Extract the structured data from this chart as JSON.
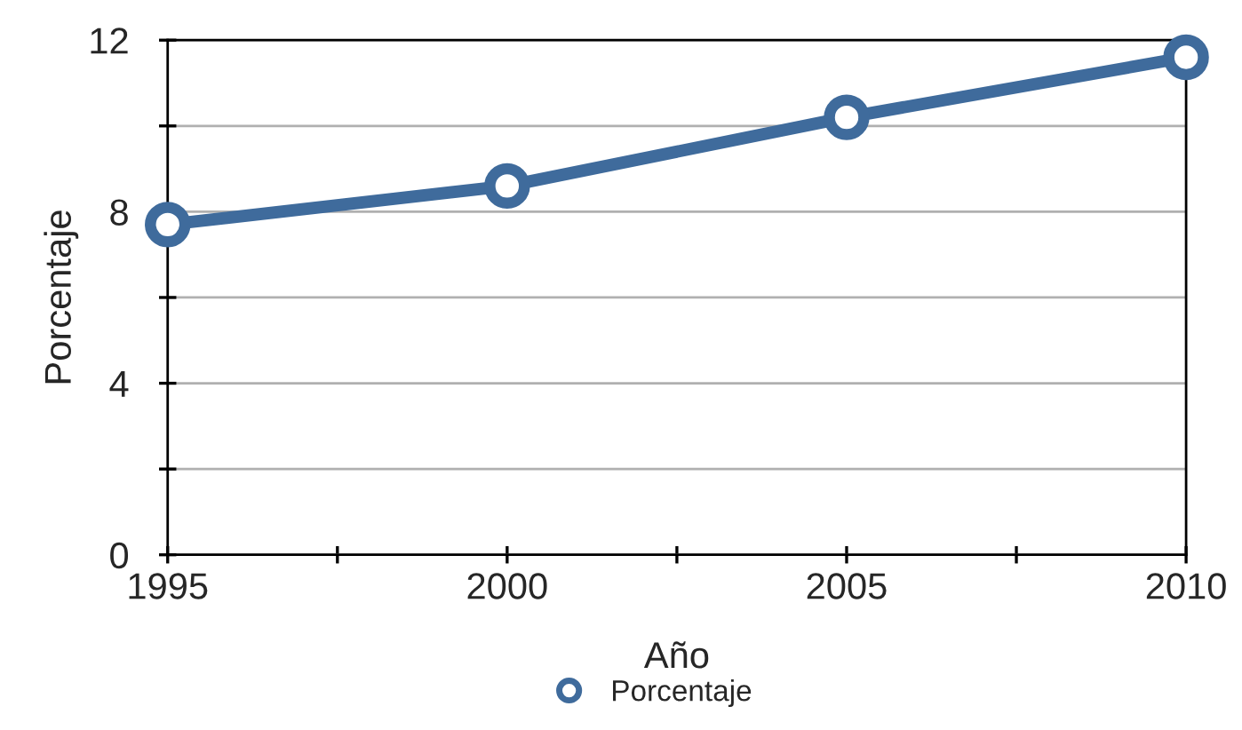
{
  "chart_data": {
    "type": "line",
    "xlabel": "Año",
    "ylabel": "Porcentaje",
    "x": [
      1995,
      2000,
      2005,
      2010
    ],
    "series": [
      {
        "name": "Porcentaje",
        "color": "#3f6b9c",
        "values": [
          7.7,
          8.6,
          10.2,
          11.6
        ]
      }
    ],
    "xlim": [
      1995,
      2010
    ],
    "xticks": [
      1995,
      {
        "value": 1997.5,
        "label": null
      },
      2000,
      {
        "value": 2002.5,
        "label": null
      },
      2005,
      {
        "value": 2007.5,
        "label": null
      },
      2010
    ],
    "ylim": [
      0,
      12
    ],
    "yticks": [
      0,
      {
        "value": 2,
        "label": null
      },
      4,
      {
        "value": 6,
        "label": null
      },
      8,
      {
        "value": 10,
        "label": null
      },
      12
    ],
    "grid": "y",
    "legend": "bottom",
    "marker": "circle",
    "line_style": "solid"
  }
}
